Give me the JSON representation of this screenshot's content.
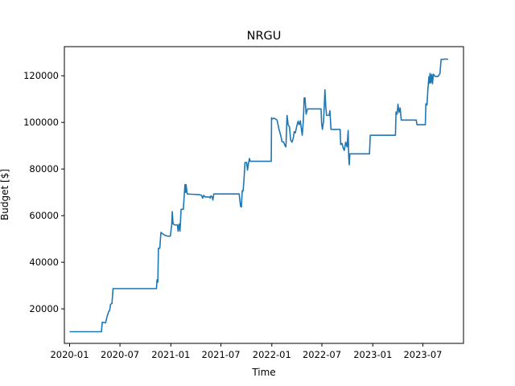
{
  "chart_data": {
    "type": "line",
    "title": "NRGU",
    "xlabel": "Time",
    "ylabel": "Budget [$]",
    "xlim": [
      "2019-12-13",
      "2023-11-25"
    ],
    "ylim": [
      5200,
      132500
    ],
    "x_ticks": [
      "2020-01",
      "2020-07",
      "2021-01",
      "2021-07",
      "2022-01",
      "2022-07",
      "2023-01",
      "2023-07"
    ],
    "y_ticks": [
      20000,
      40000,
      60000,
      80000,
      100000,
      120000
    ],
    "y_tick_labels": [
      "20000",
      "40000",
      "60000",
      "80000",
      "100000",
      "120000"
    ],
    "grid": false,
    "series": [
      {
        "color": "#1f77b4",
        "points": [
          [
            "2020-01-01",
            10200
          ],
          [
            "2020-04-25",
            10200
          ],
          [
            "2020-04-28",
            14300
          ],
          [
            "2020-05-10",
            14000
          ],
          [
            "2020-05-15",
            16500
          ],
          [
            "2020-05-20",
            18500
          ],
          [
            "2020-05-25",
            19500
          ],
          [
            "2020-05-28",
            22000
          ],
          [
            "2020-06-02",
            22300
          ],
          [
            "2020-06-06",
            28700
          ],
          [
            "2020-11-10",
            28700
          ],
          [
            "2020-11-12",
            32500
          ],
          [
            "2020-11-15",
            31500
          ],
          [
            "2020-11-17",
            46000
          ],
          [
            "2020-11-22",
            46000
          ],
          [
            "2020-11-26",
            52800
          ],
          [
            "2020-12-05",
            52000
          ],
          [
            "2020-12-12",
            51500
          ],
          [
            "2020-12-20",
            51200
          ],
          [
            "2020-12-30",
            51200
          ],
          [
            "2021-01-04",
            56000
          ],
          [
            "2021-01-06",
            61700
          ],
          [
            "2021-01-09",
            56500
          ],
          [
            "2021-01-15",
            56000
          ],
          [
            "2021-01-25",
            56000
          ],
          [
            "2021-01-27",
            53300
          ],
          [
            "2021-01-31",
            56400
          ],
          [
            "2021-02-03",
            53300
          ],
          [
            "2021-02-07",
            62700
          ],
          [
            "2021-02-15",
            62700
          ],
          [
            "2021-02-18",
            68000
          ],
          [
            "2021-02-21",
            73300
          ],
          [
            "2021-02-23",
            70000
          ],
          [
            "2021-02-25",
            73300
          ],
          [
            "2021-03-01",
            69300
          ],
          [
            "2021-03-15",
            69200
          ],
          [
            "2021-04-15",
            69000
          ],
          [
            "2021-04-22",
            68700
          ],
          [
            "2021-04-26",
            67500
          ],
          [
            "2021-04-30",
            68700
          ],
          [
            "2021-05-05",
            68000
          ],
          [
            "2021-05-20",
            68000
          ],
          [
            "2021-05-23",
            67500
          ],
          [
            "2021-05-26",
            68500
          ],
          [
            "2021-05-30",
            68000
          ],
          [
            "2021-06-02",
            66700
          ],
          [
            "2021-06-05",
            69300
          ],
          [
            "2021-08-12",
            69300
          ],
          [
            "2021-09-05",
            69300
          ],
          [
            "2021-09-10",
            64000
          ],
          [
            "2021-09-13",
            63700
          ],
          [
            "2021-09-16",
            70700
          ],
          [
            "2021-09-19",
            70600
          ],
          [
            "2021-09-22",
            74700
          ],
          [
            "2021-09-26",
            82800
          ],
          [
            "2021-10-02",
            82800
          ],
          [
            "2021-10-05",
            79500
          ],
          [
            "2021-10-08",
            82000
          ],
          [
            "2021-10-12",
            84500
          ],
          [
            "2021-10-15",
            83300
          ],
          [
            "2021-11-10",
            83300
          ],
          [
            "2021-12-30",
            83300
          ],
          [
            "2021-12-31",
            102000
          ],
          [
            "2022-01-03",
            101500
          ],
          [
            "2022-01-10",
            101800
          ],
          [
            "2022-01-20",
            101000
          ],
          [
            "2022-01-27",
            97000
          ],
          [
            "2022-02-03",
            94000
          ],
          [
            "2022-02-07",
            91700
          ],
          [
            "2022-02-12",
            91700
          ],
          [
            "2022-02-18",
            90000
          ],
          [
            "2022-02-21",
            89500
          ],
          [
            "2022-02-25",
            103000
          ],
          [
            "2022-03-01",
            99000
          ],
          [
            "2022-03-06",
            98000
          ],
          [
            "2022-03-10",
            92500
          ],
          [
            "2022-03-15",
            91500
          ],
          [
            "2022-03-20",
            93500
          ],
          [
            "2022-03-23",
            96000
          ],
          [
            "2022-03-27",
            95500
          ],
          [
            "2022-04-01",
            98300
          ],
          [
            "2022-04-06",
            100500
          ],
          [
            "2022-04-10",
            99000
          ],
          [
            "2022-04-14",
            100700
          ],
          [
            "2022-04-18",
            97000
          ],
          [
            "2022-04-21",
            94500
          ],
          [
            "2022-04-25",
            101000
          ],
          [
            "2022-04-28",
            110500
          ],
          [
            "2022-05-01",
            110500
          ],
          [
            "2022-05-05",
            103500
          ],
          [
            "2022-05-10",
            105800
          ],
          [
            "2022-06-28",
            105800
          ],
          [
            "2022-06-30",
            99500
          ],
          [
            "2022-07-03",
            97000
          ],
          [
            "2022-07-07",
            100500
          ],
          [
            "2022-07-10",
            108000
          ],
          [
            "2022-07-12",
            114000
          ],
          [
            "2022-07-15",
            107000
          ],
          [
            "2022-07-18",
            103000
          ],
          [
            "2022-07-27",
            103000
          ],
          [
            "2022-07-30",
            105000
          ],
          [
            "2022-08-03",
            97000
          ],
          [
            "2022-09-05",
            97000
          ],
          [
            "2022-09-07",
            90500
          ],
          [
            "2022-09-12",
            91000
          ],
          [
            "2022-09-16",
            89000
          ],
          [
            "2022-09-20",
            88000
          ],
          [
            "2022-09-25",
            91500
          ],
          [
            "2022-09-30",
            89500
          ],
          [
            "2022-10-04",
            96500
          ],
          [
            "2022-10-06",
            85000
          ],
          [
            "2022-10-08",
            81800
          ],
          [
            "2022-10-10",
            86500
          ],
          [
            "2022-12-20",
            86500
          ],
          [
            "2022-12-23",
            94500
          ],
          [
            "2023-03-24",
            94500
          ],
          [
            "2023-03-26",
            104500
          ],
          [
            "2023-03-30",
            103500
          ],
          [
            "2023-04-02",
            107800
          ],
          [
            "2023-04-06",
            104300
          ],
          [
            "2023-04-10",
            106200
          ],
          [
            "2023-04-14",
            101000
          ],
          [
            "2023-06-07",
            101000
          ],
          [
            "2023-06-10",
            99000
          ],
          [
            "2023-07-10",
            99000
          ],
          [
            "2023-07-12",
            108000
          ],
          [
            "2023-07-16",
            107500
          ],
          [
            "2023-07-19",
            113800
          ],
          [
            "2023-07-23",
            119600
          ],
          [
            "2023-07-25",
            116800
          ],
          [
            "2023-07-27",
            121000
          ],
          [
            "2023-07-30",
            117000
          ],
          [
            "2023-08-02",
            120600
          ],
          [
            "2023-08-05",
            116600
          ],
          [
            "2023-08-08",
            120700
          ],
          [
            "2023-08-15",
            119700
          ],
          [
            "2023-08-25",
            119700
          ],
          [
            "2023-09-01",
            121000
          ],
          [
            "2023-09-05",
            127000
          ],
          [
            "2023-09-25",
            127200
          ],
          [
            "2023-09-30",
            127000
          ]
        ]
      }
    ]
  }
}
